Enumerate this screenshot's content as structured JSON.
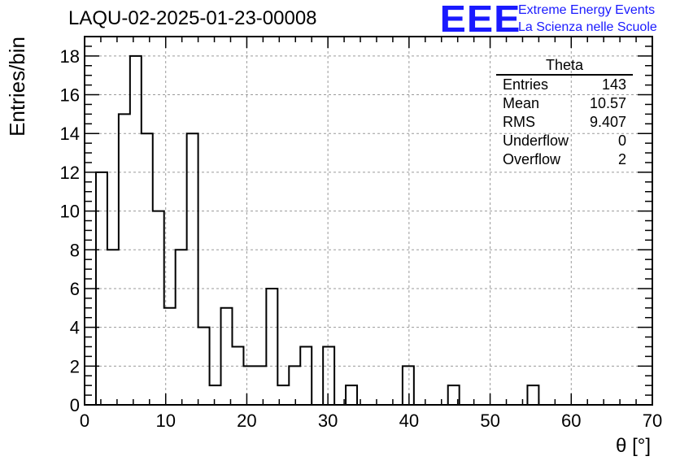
{
  "title": "LAQU-02-2025-01-23-00008",
  "logo": {
    "mark": "EEE",
    "line1": "Extreme Energy Events",
    "line2": "La Scienza nelle Scuole",
    "color": "#1a1aff"
  },
  "stats_box": {
    "name": "Theta",
    "rows": [
      {
        "label": "Entries",
        "value": "143"
      },
      {
        "label": "Mean",
        "value": "10.57"
      },
      {
        "label": "RMS",
        "value": "9.407"
      },
      {
        "label": "Underflow",
        "value": "0"
      },
      {
        "label": "Overflow",
        "value": "2"
      }
    ]
  },
  "chart_data": {
    "type": "bar",
    "style": "step-histogram",
    "xlabel": "θ [°]",
    "ylabel": "Entries/bin",
    "xlim": [
      0,
      70
    ],
    "ylim": [
      0,
      19
    ],
    "xticks": [
      0,
      10,
      20,
      30,
      40,
      50,
      60,
      70
    ],
    "yticks": [
      0,
      2,
      4,
      6,
      8,
      10,
      12,
      14,
      16,
      18
    ],
    "grid": true,
    "bin_width": 1.4,
    "x_start": 0,
    "values": [
      0,
      12,
      8,
      15,
      18,
      14,
      10,
      5,
      8,
      14,
      4,
      1,
      5,
      3,
      2,
      2,
      6,
      1,
      2,
      3,
      0,
      3,
      0,
      1,
      0,
      0,
      0,
      0,
      2,
      0,
      0,
      0,
      1,
      0,
      0,
      0,
      0,
      0,
      0,
      1,
      0,
      0,
      0,
      0,
      0,
      0,
      0,
      0,
      0,
      0
    ]
  }
}
